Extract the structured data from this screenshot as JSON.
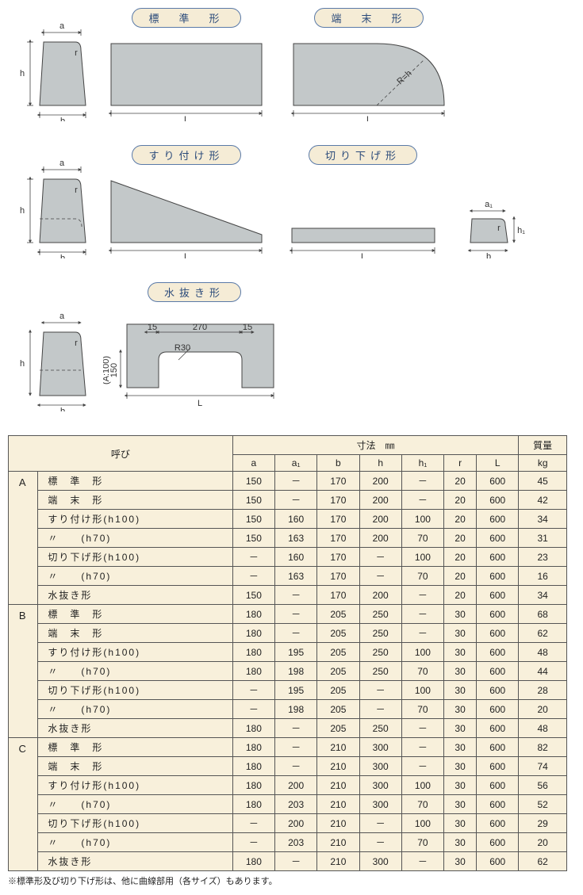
{
  "colors": {
    "shape_fill": "#c3c8c9",
    "shape_stroke": "#444444",
    "caption_bg": "#f5ecd6",
    "caption_border": "#5a7aa8",
    "caption_text": "#2a4a7a",
    "table_bg": "#f8f0db",
    "table_border": "#555555",
    "page_bg": "#ffffff"
  },
  "diagrams": {
    "row1": {
      "profile_a": {
        "labels": {
          "a": "a",
          "b": "b",
          "h": "h",
          "r": "r"
        }
      },
      "standard": {
        "caption": "標　準　形",
        "L": "L"
      },
      "terminal": {
        "caption": "端　末　形",
        "L": "L",
        "R": "R=h"
      }
    },
    "row2": {
      "profile_b": {
        "labels": {
          "a": "a",
          "b": "b",
          "h": "h",
          "h1": "h₁",
          "r": "r"
        }
      },
      "suri": {
        "caption": "すり付け形",
        "L": "L"
      },
      "kiri": {
        "caption": "切り下げ形",
        "L": "L"
      },
      "profile_c": {
        "labels": {
          "a1": "a₁",
          "b": "b",
          "h1": "h₁",
          "r": "r"
        }
      }
    },
    "row3": {
      "profile_d": {
        "labels": {
          "a": "a",
          "b": "b",
          "h": "h",
          "r": "r"
        }
      },
      "mizunuki": {
        "caption": "水抜き形",
        "L": "L",
        "dim15a": "15",
        "dim15b": "15",
        "dim270": "270",
        "dim150": "150",
        "dim_a100": "(A:100)",
        "dimR30": "R30"
      }
    }
  },
  "table": {
    "headers": {
      "yobi": "呼び",
      "sunpo": "寸法　㎜",
      "mass": "質量",
      "a": "a",
      "a1": "a₁",
      "b": "b",
      "h": "h",
      "h1": "h₁",
      "r": "r",
      "L": "L",
      "kg": "kg"
    },
    "groups": [
      {
        "name": "A",
        "rows": [
          {
            "type": "標　準　形",
            "a": "150",
            "a1": "－",
            "b": "170",
            "h": "200",
            "h1": "－",
            "r": "20",
            "L": "600",
            "kg": "45"
          },
          {
            "type": "端　末　形",
            "a": "150",
            "a1": "－",
            "b": "170",
            "h": "200",
            "h1": "－",
            "r": "20",
            "L": "600",
            "kg": "42"
          },
          {
            "type": "すり付け形(h100)",
            "a": "150",
            "a1": "160",
            "b": "170",
            "h": "200",
            "h1": "100",
            "r": "20",
            "L": "600",
            "kg": "34"
          },
          {
            "type": "〃　　(h70)",
            "a": "150",
            "a1": "163",
            "b": "170",
            "h": "200",
            "h1": "70",
            "r": "20",
            "L": "600",
            "kg": "31"
          },
          {
            "type": "切り下げ形(h100)",
            "a": "－",
            "a1": "160",
            "b": "170",
            "h": "－",
            "h1": "100",
            "r": "20",
            "L": "600",
            "kg": "23"
          },
          {
            "type": "〃　　(h70)",
            "a": "－",
            "a1": "163",
            "b": "170",
            "h": "－",
            "h1": "70",
            "r": "20",
            "L": "600",
            "kg": "16"
          },
          {
            "type": "水抜き形",
            "a": "150",
            "a1": "－",
            "b": "170",
            "h": "200",
            "h1": "－",
            "r": "20",
            "L": "600",
            "kg": "34"
          }
        ]
      },
      {
        "name": "B",
        "rows": [
          {
            "type": "標　準　形",
            "a": "180",
            "a1": "－",
            "b": "205",
            "h": "250",
            "h1": "－",
            "r": "30",
            "L": "600",
            "kg": "68"
          },
          {
            "type": "端　末　形",
            "a": "180",
            "a1": "－",
            "b": "205",
            "h": "250",
            "h1": "－",
            "r": "30",
            "L": "600",
            "kg": "62"
          },
          {
            "type": "すり付け形(h100)",
            "a": "180",
            "a1": "195",
            "b": "205",
            "h": "250",
            "h1": "100",
            "r": "30",
            "L": "600",
            "kg": "48"
          },
          {
            "type": "〃　　(h70)",
            "a": "180",
            "a1": "198",
            "b": "205",
            "h": "250",
            "h1": "70",
            "r": "30",
            "L": "600",
            "kg": "44"
          },
          {
            "type": "切り下げ形(h100)",
            "a": "－",
            "a1": "195",
            "b": "205",
            "h": "－",
            "h1": "100",
            "r": "30",
            "L": "600",
            "kg": "28"
          },
          {
            "type": "〃　　(h70)",
            "a": "－",
            "a1": "198",
            "b": "205",
            "h": "－",
            "h1": "70",
            "r": "30",
            "L": "600",
            "kg": "20"
          },
          {
            "type": "水抜き形",
            "a": "180",
            "a1": "－",
            "b": "205",
            "h": "250",
            "h1": "－",
            "r": "30",
            "L": "600",
            "kg": "48"
          }
        ]
      },
      {
        "name": "C",
        "rows": [
          {
            "type": "標　準　形",
            "a": "180",
            "a1": "－",
            "b": "210",
            "h": "300",
            "h1": "－",
            "r": "30",
            "L": "600",
            "kg": "82"
          },
          {
            "type": "端　末　形",
            "a": "180",
            "a1": "－",
            "b": "210",
            "h": "300",
            "h1": "－",
            "r": "30",
            "L": "600",
            "kg": "74"
          },
          {
            "type": "すり付け形(h100)",
            "a": "180",
            "a1": "200",
            "b": "210",
            "h": "300",
            "h1": "100",
            "r": "30",
            "L": "600",
            "kg": "56"
          },
          {
            "type": "〃　　(h70)",
            "a": "180",
            "a1": "203",
            "b": "210",
            "h": "300",
            "h1": "70",
            "r": "30",
            "L": "600",
            "kg": "52"
          },
          {
            "type": "切り下げ形(h100)",
            "a": "－",
            "a1": "200",
            "b": "210",
            "h": "－",
            "h1": "100",
            "r": "30",
            "L": "600",
            "kg": "29"
          },
          {
            "type": "〃　　(h70)",
            "a": "－",
            "a1": "203",
            "b": "210",
            "h": "－",
            "h1": "70",
            "r": "30",
            "L": "600",
            "kg": "20"
          },
          {
            "type": "水抜き形",
            "a": "180",
            "a1": "－",
            "b": "210",
            "h": "300",
            "h1": "－",
            "r": "30",
            "L": "600",
            "kg": "62"
          }
        ]
      }
    ]
  },
  "note": "※標準形及び切り下げ形は、他に曲線部用（各サイズ）もあります。"
}
